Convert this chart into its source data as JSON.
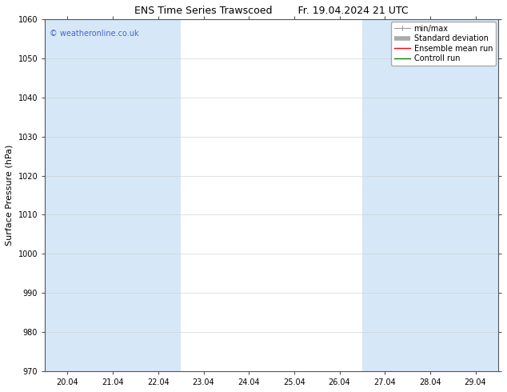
{
  "title_left": "ENS Time Series Trawscoed",
  "title_right": "Fr. 19.04.2024 21 UTC",
  "ylabel": "Surface Pressure (hPa)",
  "ylim": [
    970,
    1060
  ],
  "yticks": [
    970,
    980,
    990,
    1000,
    1010,
    1020,
    1030,
    1040,
    1050,
    1060
  ],
  "xlim_start": -0.5,
  "xlim_end": 9.5,
  "xtick_labels": [
    "20.04",
    "21.04",
    "22.04",
    "23.04",
    "24.04",
    "25.04",
    "26.04",
    "27.04",
    "28.04",
    "29.04"
  ],
  "xtick_positions": [
    0,
    1,
    2,
    3,
    4,
    5,
    6,
    7,
    8,
    9
  ],
  "shaded_bands": [
    {
      "x_start": -0.5,
      "x_end": 0.5
    },
    {
      "x_start": 0.5,
      "x_end": 2.5
    },
    {
      "x_start": 6.5,
      "x_end": 8.5
    },
    {
      "x_start": 8.5,
      "x_end": 9.5
    }
  ],
  "shade_colors": [
    "#d6e8f7",
    "#d6e8f7",
    "#d6e8f7",
    "#d6e8f7"
  ],
  "watermark": "© weatheronline.co.uk",
  "watermark_color": "#4466cc",
  "bg_color": "#ffffff",
  "plot_bg_color": "#ffffff",
  "grid_color": "#cccccc",
  "spine_color": "#555555",
  "title_fontsize": 9,
  "tick_fontsize": 7,
  "label_fontsize": 8,
  "watermark_fontsize": 7,
  "legend_fontsize": 7
}
